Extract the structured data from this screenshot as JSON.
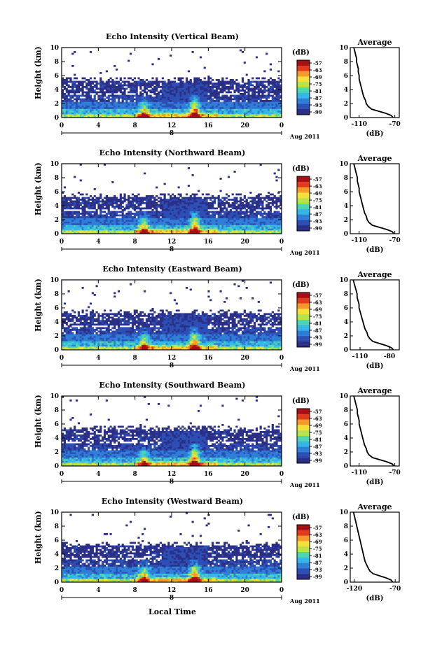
{
  "chart_data": [
    {
      "type": "heatmap",
      "title": "Echo Intensity (Vertical Beam)",
      "ylabel": "Height (km)",
      "ylim": [
        0,
        10
      ],
      "yticks": [
        "0",
        "2",
        "4",
        "6",
        "8",
        "10"
      ],
      "xticks": [
        "0",
        "4",
        "8",
        "12",
        "16",
        "20",
        "0"
      ],
      "xlim": [
        0,
        24
      ],
      "date_label": "Aug 2011",
      "day_marker": "8",
      "colorbar": {
        "label": "(dB)",
        "ticks": [
          "-57",
          "-63",
          "-69",
          "-75",
          "-81",
          "-87",
          "-93",
          "-99"
        ]
      },
      "avg": {
        "title": "Average",
        "xlabel": "(dB)",
        "xticks": [
          "-110",
          "-70"
        ],
        "xlim": [
          -120,
          -65
        ],
        "ylim": [
          0,
          10
        ],
        "height": [
          0,
          0.3,
          0.6,
          0.9,
          1.2,
          1.6,
          2,
          2.5,
          3,
          3.5,
          4,
          4.5,
          5,
          5.5,
          6,
          6.5,
          7,
          7.5,
          8,
          8.5,
          9,
          9.5,
          10
        ],
        "value": [
          -72,
          -74,
          -80,
          -88,
          -96,
          -100,
          -102,
          -103,
          -105,
          -106,
          -107,
          -108,
          -109,
          -110,
          -110,
          -111,
          -111,
          -112,
          -113,
          -113,
          -114,
          -115,
          -116
        ]
      }
    },
    {
      "type": "heatmap",
      "title": "Echo Intensity (Northward Beam)",
      "ylabel": "Height (km)",
      "ylim": [
        0,
        10
      ],
      "yticks": [
        "0",
        "2",
        "4",
        "6",
        "8",
        "10"
      ],
      "xticks": [
        "0",
        "4",
        "8",
        "12",
        "16",
        "20",
        "0"
      ],
      "xlim": [
        0,
        24
      ],
      "date_label": "Aug 2011",
      "day_marker": "8",
      "colorbar": {
        "label": "(dB)",
        "ticks": [
          "-57",
          "-63",
          "-69",
          "-75",
          "-81",
          "-87",
          "-93",
          "-99"
        ]
      },
      "avg": {
        "title": "Average",
        "xlabel": "(dB)",
        "xticks": [
          "-110",
          "-70"
        ],
        "xlim": [
          -120,
          -65
        ],
        "ylim": [
          0,
          10
        ],
        "height": [
          0,
          0.3,
          0.6,
          0.9,
          1.2,
          1.6,
          2,
          2.5,
          3,
          3.5,
          4,
          4.5,
          5,
          5.5,
          6,
          6.5,
          7,
          7.5,
          8,
          8.5,
          9,
          9.5,
          10
        ],
        "value": [
          -71,
          -73,
          -79,
          -87,
          -95,
          -99,
          -101,
          -102,
          -104,
          -105,
          -106,
          -107,
          -108,
          -109,
          -110,
          -110,
          -111,
          -112,
          -112,
          -113,
          -114,
          -115,
          -116
        ]
      }
    },
    {
      "type": "heatmap",
      "title": "Echo Intensity (Eastward Beam)",
      "ylabel": "Height (km)",
      "ylim": [
        0,
        10
      ],
      "yticks": [
        "0",
        "2",
        "4",
        "6",
        "8",
        "10"
      ],
      "xticks": [
        "0",
        "4",
        "8",
        "12",
        "16",
        "20",
        "0"
      ],
      "xlim": [
        0,
        24
      ],
      "date_label": "Aug 2011",
      "day_marker": "8",
      "colorbar": {
        "label": "(dB)",
        "ticks": [
          "-57",
          "-63",
          "-69",
          "-75",
          "-81",
          "-87",
          "-93",
          "-99"
        ]
      },
      "avg": {
        "title": "Average",
        "xlabel": "(dB)",
        "xticks": [
          "-110",
          "-80"
        ],
        "xlim": [
          -120,
          -70
        ],
        "ylim": [
          0,
          10
        ],
        "height": [
          0,
          0.3,
          0.6,
          0.9,
          1.2,
          1.6,
          2,
          2.5,
          3,
          3.5,
          4,
          4.5,
          5,
          5.5,
          6,
          6.5,
          7,
          7.5,
          8,
          8.5,
          9,
          9.5,
          10
        ],
        "value": [
          -76,
          -78,
          -83,
          -90,
          -97,
          -100,
          -102,
          -103,
          -105,
          -106,
          -107,
          -108,
          -109,
          -110,
          -111,
          -111,
          -112,
          -113,
          -113,
          -114,
          -115,
          -116,
          -117
        ]
      }
    },
    {
      "type": "heatmap",
      "title": "Echo Intensity (Southward Beam)",
      "ylabel": "Height (km)",
      "ylim": [
        0,
        10
      ],
      "yticks": [
        "0",
        "2",
        "4",
        "6",
        "8",
        "10"
      ],
      "xticks": [
        "0",
        "4",
        "8",
        "12",
        "16",
        "20",
        "0"
      ],
      "xlim": [
        0,
        24
      ],
      "date_label": "Aug 2011",
      "day_marker": "8",
      "colorbar": {
        "label": "(dB)",
        "ticks": [
          "-57",
          "-63",
          "-69",
          "-75",
          "-81",
          "-87",
          "-93",
          "-99"
        ]
      },
      "avg": {
        "title": "Average",
        "xlabel": "(dB)",
        "xticks": [
          "-110",
          "-70"
        ],
        "xlim": [
          -120,
          -65
        ],
        "ylim": [
          0,
          10
        ],
        "height": [
          0,
          0.3,
          0.6,
          0.9,
          1.2,
          1.6,
          2,
          2.5,
          3,
          3.5,
          4,
          4.5,
          5,
          5.5,
          6,
          6.5,
          7,
          7.5,
          8,
          8.5,
          9,
          9.5,
          10
        ],
        "value": [
          -71,
          -73,
          -79,
          -87,
          -95,
          -99,
          -101,
          -102,
          -104,
          -105,
          -106,
          -107,
          -108,
          -109,
          -110,
          -110,
          -111,
          -112,
          -112,
          -113,
          -114,
          -115,
          -116
        ]
      }
    },
    {
      "type": "heatmap",
      "title": "Echo Intensity (Westward Beam)",
      "ylabel": "Height (km)",
      "ylim": [
        0,
        10
      ],
      "yticks": [
        "0",
        "2",
        "4",
        "6",
        "8",
        "10"
      ],
      "xticks": [
        "0",
        "4",
        "8",
        "12",
        "16",
        "20",
        "0"
      ],
      "xlim": [
        0,
        24
      ],
      "date_label": "Aug 2011",
      "day_marker": "8",
      "colorbar": {
        "label": "(dB)",
        "ticks": [
          "-57",
          "-63",
          "-69",
          "-75",
          "-81",
          "-87",
          "-93",
          "-99"
        ]
      },
      "avg": {
        "title": "Average",
        "xlabel": "(dB)",
        "xticks": [
          "-120",
          "-70"
        ],
        "xlim": [
          -125,
          -65
        ],
        "ylim": [
          0,
          10
        ],
        "height": [
          0,
          0.3,
          0.6,
          0.9,
          1.2,
          1.6,
          2,
          2.5,
          3,
          3.5,
          4,
          4.5,
          5,
          5.5,
          6,
          6.5,
          7,
          7.5,
          8,
          8.5,
          9,
          9.5,
          10
        ],
        "value": [
          -73,
          -75,
          -81,
          -89,
          -97,
          -101,
          -103,
          -105,
          -107,
          -108,
          -109,
          -110,
          -111,
          -112,
          -113,
          -114,
          -115,
          -116,
          -117,
          -118,
          -119,
          -120,
          -121
        ]
      }
    }
  ],
  "xaxis_title": "Local Time",
  "colormap": [
    "#ffffff",
    "#2b2f86",
    "#2c4fb5",
    "#2f7fd8",
    "#35b7e6",
    "#4fd6b0",
    "#b6e34a",
    "#f3e03a",
    "#f59a2a",
    "#e23a1f",
    "#a50f15"
  ]
}
